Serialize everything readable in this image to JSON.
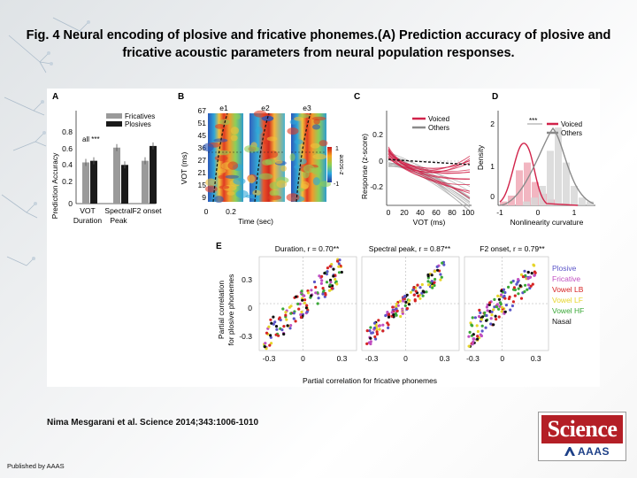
{
  "title": "Fig. 4 Neural encoding of plosive and fricative phonemes.(A) Prediction accuracy of plosive and fricative acoustic parameters from neural population responses.",
  "citation": "Nima Mesgarani et al. Science 2014;343:1006-1010",
  "published": "Published by AAAS",
  "logo": {
    "word": "Science",
    "sub": "AAAS"
  },
  "panels": {
    "a": {
      "letter": "A",
      "ylabel": "Prediction Accuracy",
      "yticks": [
        "0",
        "0.2",
        "0.4",
        "0.6",
        "0.8"
      ],
      "xcats": [
        "VOT",
        "Spectral",
        "F2 onset"
      ],
      "xsub": [
        "Duration",
        "Peak"
      ],
      "legend": [
        "Fricatives",
        "Plosives"
      ],
      "sig": "all ***"
    },
    "b": {
      "letter": "B",
      "ylabel": "VOT (ms)",
      "xlabel": "Time (sec)",
      "yticks": [
        "67",
        "51",
        "45",
        "36",
        "27",
        "21",
        "15",
        "9"
      ],
      "xticks": [
        "0",
        "0.2"
      ],
      "electrodes": [
        "e1",
        "e2",
        "e3"
      ],
      "cbar_label": "z-score",
      "cbar_ticks": [
        "1",
        "-1"
      ]
    },
    "c": {
      "letter": "C",
      "ylabel": "Response (z-score)",
      "xlabel": "VOT (ms)",
      "yticks": [
        "0.2",
        "0",
        "-0.2"
      ],
      "xticks": [
        "0",
        "20",
        "40",
        "60",
        "80",
        "100"
      ],
      "legend": [
        "Voiced",
        "Others"
      ]
    },
    "d": {
      "letter": "D",
      "ylabel": "Density",
      "xlabel": "Nonlinearity curvature",
      "yticks": [
        "2",
        "1",
        "0"
      ],
      "xticks": [
        "-1",
        "0",
        "1"
      ],
      "legend": [
        "Voiced",
        "Others"
      ],
      "sig": "***"
    },
    "e": {
      "letter": "E",
      "ylabel1": "Partial correlation",
      "ylabel2": "for plosive phonemes",
      "xlabel": "Partial correlation for fricative phonemes",
      "subtitles": [
        "Duration, r = 0.70**",
        "Spectral peak, r = 0.87**",
        "F2 onset, r = 0.79**"
      ],
      "yticks": [
        "0.3",
        "0",
        "-0.3"
      ],
      "xticks": [
        "-0.3",
        "0",
        "0.3"
      ],
      "legend": [
        "Plosive",
        "Fricative",
        "Vowel LB",
        "Vowel LF",
        "Vowel HF",
        "Nasal"
      ]
    }
  },
  "colors": {
    "voiced": "#d1234a",
    "others": "#8a8a8a",
    "fricatives": "#9a9a9a",
    "plosives": "#1a1a1a",
    "science_red": "#b41f26",
    "e_legend": [
      "#5b55c8",
      "#c04fc0",
      "#d62424",
      "#e6d52a",
      "#3aa837",
      "#111111"
    ]
  },
  "chart_data": [
    {
      "type": "bar",
      "panel": "A",
      "categories": [
        "VOT Duration",
        "Spectral Peak",
        "F2 onset"
      ],
      "series": [
        {
          "name": "Fricatives",
          "values": [
            0.5,
            0.68,
            0.52
          ]
        },
        {
          "name": "Plosives",
          "values": [
            0.52,
            0.47,
            0.7
          ]
        }
      ],
      "ylabel": "Prediction Accuracy",
      "ylim": [
        0,
        0.85
      ]
    },
    {
      "type": "scatter",
      "panel": "E",
      "subtitles": [
        "Duration, r = 0.70**",
        "Spectral peak, r = 0.87**",
        "F2 onset, r = 0.79**"
      ],
      "xlim": [
        -0.4,
        0.4
      ],
      "ylim": [
        -0.4,
        0.4
      ]
    }
  ]
}
